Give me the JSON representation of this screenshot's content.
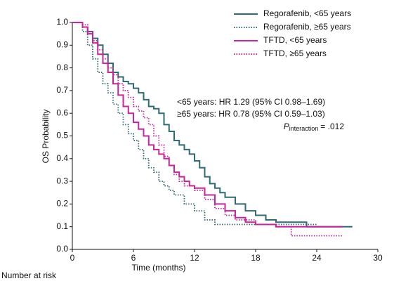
{
  "chart_data": {
    "type": "step",
    "xlabel": "Time (months)",
    "ylabel": "OS Probability",
    "xlim": [
      0,
      30
    ],
    "ylim": [
      0,
      1
    ],
    "xticks": [
      0,
      6,
      12,
      18,
      24,
      30
    ],
    "yticks": [
      {
        "value": 0,
        "label": "0.0"
      },
      {
        "value": 0.1,
        "label": "0.1"
      },
      {
        "value": 0.2,
        "label": "0.2"
      },
      {
        "value": 0.3,
        "label": "0.3"
      },
      {
        "value": 0.4,
        "label": "0.4"
      },
      {
        "value": 0.5,
        "label": "0.5"
      },
      {
        "value": 0.6,
        "label": "0.6"
      },
      {
        "value": 0.7,
        "label": "0.7"
      },
      {
        "value": 0.8,
        "label": "0.8"
      },
      {
        "value": 0.9,
        "label": "0.9"
      },
      {
        "value": 1,
        "label": "1.0"
      }
    ],
    "legend": "upper right",
    "annotations": [
      "<65 years: HR 1.29 (95% CI 0.98–1.69)",
      "≥65 years: HR 0.78 (95% CI 0.59–1.03)"
    ],
    "p_annotation": {
      "symbol": "P",
      "subscript": "interaction",
      "text": "= .012"
    },
    "footer": "Number at risk",
    "series": [
      {
        "name": "Regorafenib, <65 years",
        "color": "#2e6b73",
        "dash": "solid",
        "x": [
          0,
          1,
          1.5,
          2,
          2.5,
          3,
          3.5,
          4,
          4.5,
          5,
          5.5,
          6,
          6.5,
          7,
          7.5,
          8,
          8.5,
          9,
          9.5,
          10,
          10.5,
          11,
          11.5,
          12,
          12.5,
          13,
          13.5,
          14,
          14.5,
          15,
          16,
          17,
          18,
          19,
          20,
          23,
          27.5
        ],
        "values": [
          1,
          0.98,
          0.96,
          0.93,
          0.9,
          0.86,
          0.82,
          0.78,
          0.76,
          0.74,
          0.73,
          0.71,
          0.69,
          0.66,
          0.63,
          0.62,
          0.6,
          0.55,
          0.52,
          0.48,
          0.46,
          0.44,
          0.42,
          0.39,
          0.36,
          0.32,
          0.29,
          0.27,
          0.25,
          0.23,
          0.2,
          0.17,
          0.15,
          0.13,
          0.12,
          0.1,
          0.1
        ]
      },
      {
        "name": "Regorafenib, ≥65 years",
        "color": "#2e6b73",
        "dash": "dotted",
        "x": [
          0,
          1,
          1.5,
          2,
          2.5,
          3,
          3.5,
          4,
          4.5,
          5,
          5.5,
          6,
          6.5,
          7,
          7.5,
          8,
          8.5,
          9,
          9.5,
          10,
          11,
          12,
          13,
          14,
          24
        ],
        "values": [
          1,
          0.96,
          0.9,
          0.84,
          0.78,
          0.73,
          0.69,
          0.64,
          0.6,
          0.55,
          0.51,
          0.48,
          0.44,
          0.4,
          0.36,
          0.34,
          0.3,
          0.28,
          0.26,
          0.24,
          0.2,
          0.17,
          0.13,
          0.11,
          0.11
        ]
      },
      {
        "name": "TFTD, <65 years",
        "color": "#c8259b",
        "dash": "solid",
        "x": [
          0,
          1,
          1.5,
          2,
          2.5,
          3,
          3.5,
          4,
          4.5,
          5,
          5.5,
          6,
          6.5,
          7,
          7.5,
          8,
          8.5,
          9,
          9.5,
          10,
          10.5,
          11,
          11.5,
          12,
          13,
          14,
          15,
          16,
          17,
          18,
          20,
          26.5
        ],
        "values": [
          1,
          0.98,
          0.95,
          0.91,
          0.86,
          0.82,
          0.78,
          0.73,
          0.68,
          0.63,
          0.6,
          0.56,
          0.53,
          0.5,
          0.46,
          0.44,
          0.42,
          0.4,
          0.37,
          0.34,
          0.32,
          0.3,
          0.28,
          0.27,
          0.24,
          0.2,
          0.17,
          0.14,
          0.12,
          0.11,
          0.1,
          0.1
        ]
      },
      {
        "name": "TFTD, ≥65 years",
        "color": "#c8259b",
        "dash": "dotted",
        "x": [
          0,
          1,
          1.5,
          2,
          2.5,
          3,
          3.5,
          4,
          4.5,
          5,
          5.5,
          6,
          6.5,
          7,
          7.5,
          8,
          8.5,
          9,
          9.5,
          10,
          10.5,
          11,
          12,
          13,
          14,
          15,
          16,
          18,
          20,
          21.5,
          26.5
        ],
        "values": [
          1,
          0.99,
          0.96,
          0.92,
          0.88,
          0.84,
          0.8,
          0.77,
          0.73,
          0.7,
          0.67,
          0.63,
          0.61,
          0.58,
          0.55,
          0.5,
          0.46,
          0.41,
          0.37,
          0.33,
          0.3,
          0.28,
          0.26,
          0.22,
          0.18,
          0.15,
          0.13,
          0.11,
          0.1,
          0.06,
          0.06
        ]
      }
    ]
  }
}
